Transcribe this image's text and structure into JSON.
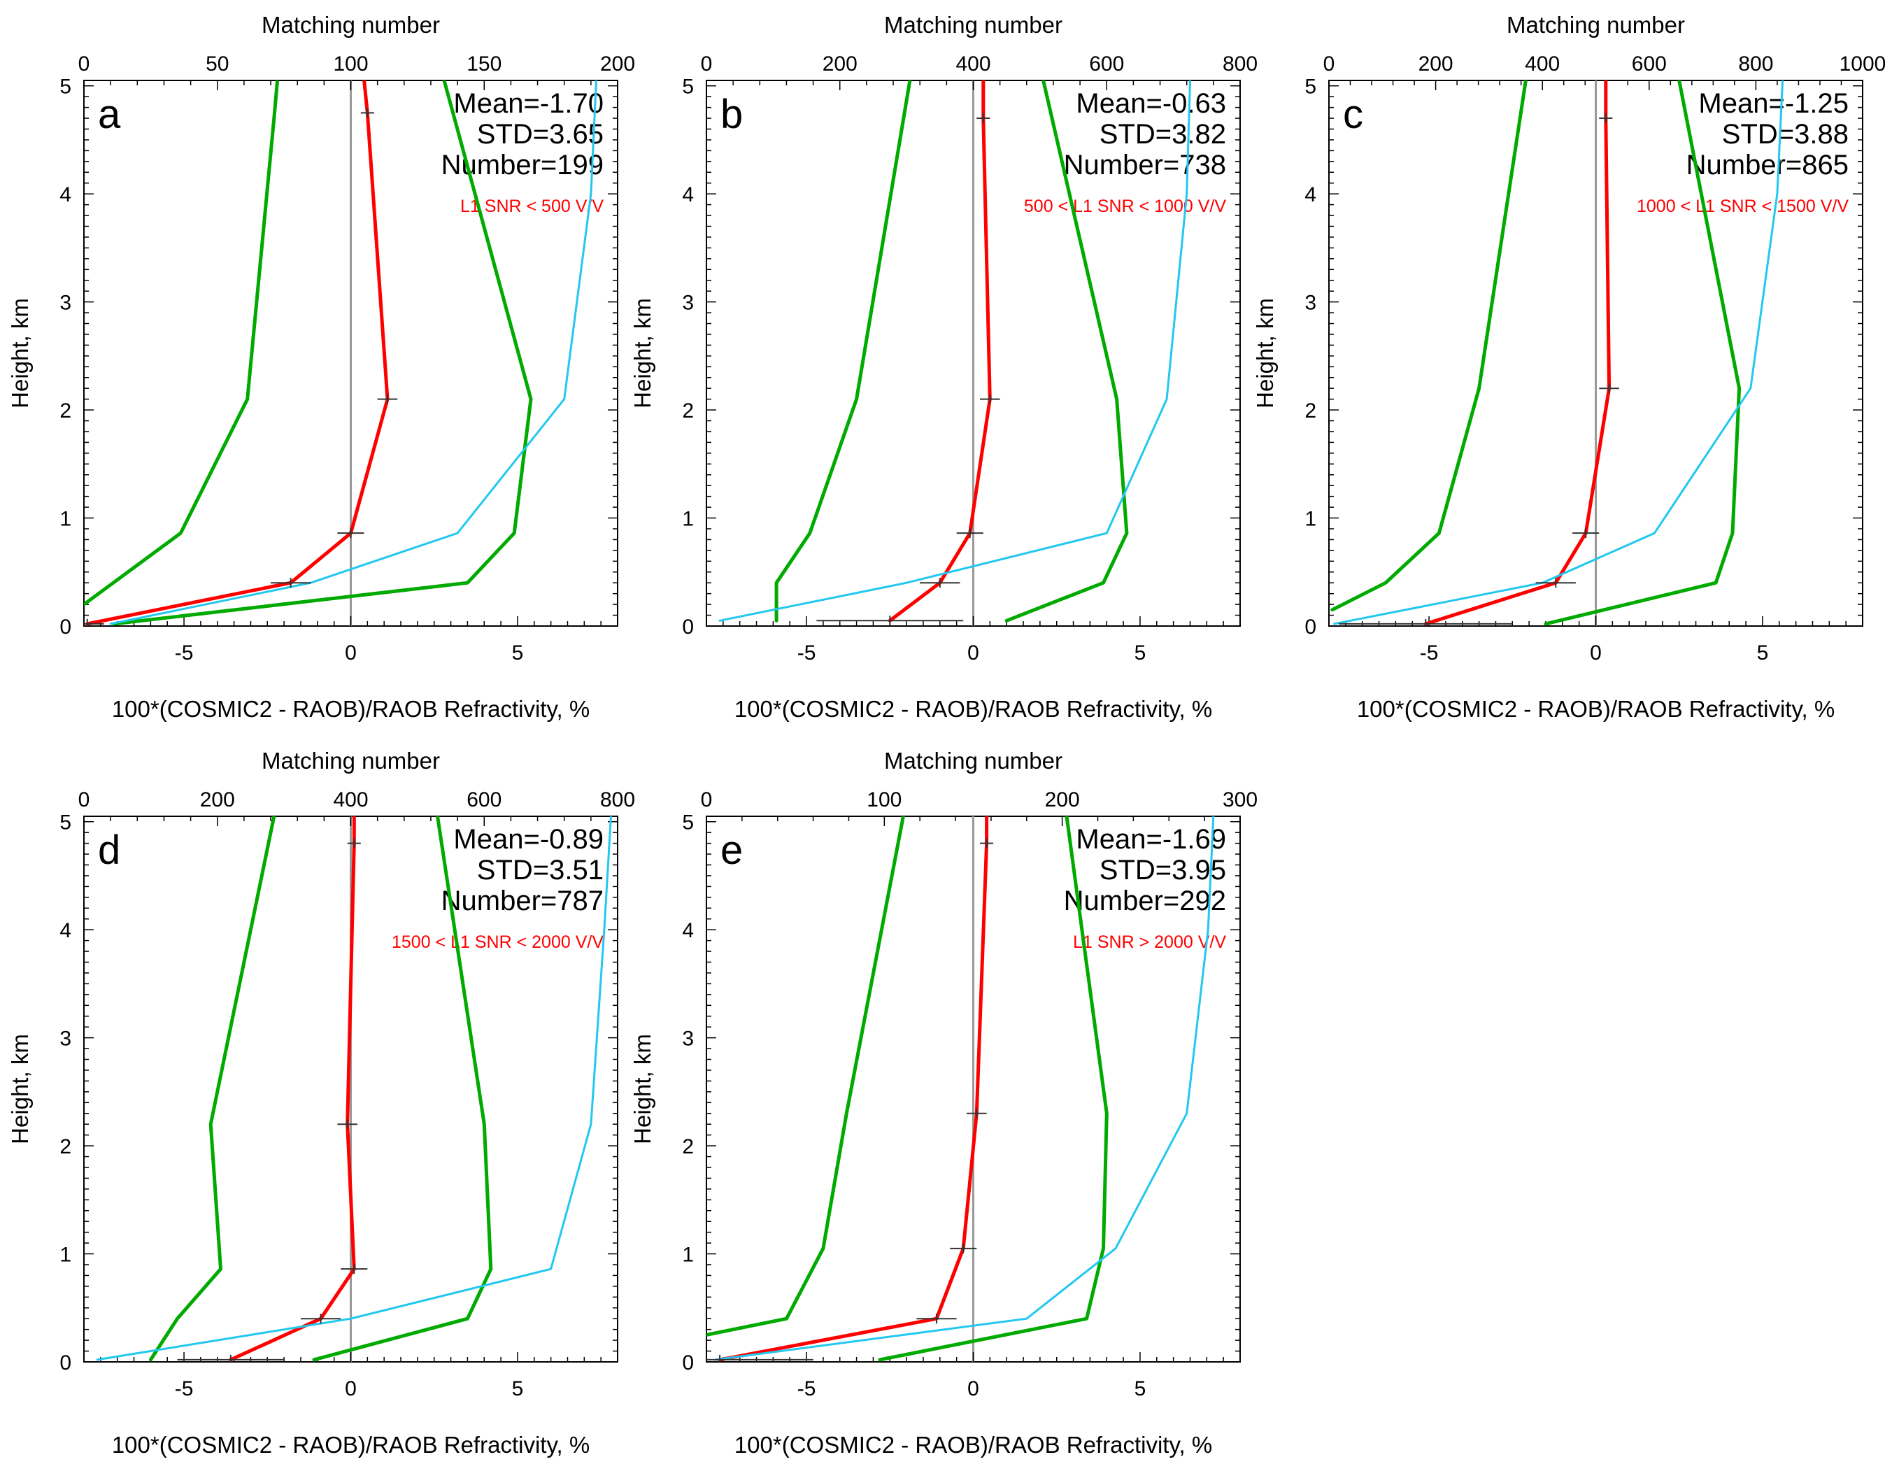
{
  "colors": {
    "bias": "#ff0000",
    "std": "#00aa00",
    "matching": "#22c8f0",
    "zero_line": "#999999",
    "axis": "#000000"
  },
  "chart_data": [
    {
      "type": "line",
      "panel_label": "a",
      "xlabel": "100*(COSMIC2 - RAOB)/RAOB Refractivity, %",
      "ylabel": "Height, km",
      "top_xlabel": "Matching number",
      "xlim": [
        -8,
        8
      ],
      "ylim": [
        0,
        5.05
      ],
      "top_xlim": [
        0,
        200
      ],
      "x_ticks": [
        -5,
        0,
        5
      ],
      "y_ticks": [
        0,
        1,
        2,
        3,
        4,
        5
      ],
      "top_ticks": [
        0,
        50,
        100,
        150,
        200
      ],
      "stats": {
        "mean": "Mean=-1.70",
        "std": "STD=3.65",
        "number": "Number=199"
      },
      "snr_label": "L1 SNR < 500 V/V",
      "series": [
        {
          "role": "bias",
          "points": [
            [
              -7.9,
              0.02
            ],
            [
              -1.8,
              0.4
            ],
            [
              0.0,
              0.86
            ],
            [
              1.1,
              2.1
            ],
            [
              0.5,
              4.75
            ],
            [
              0.4,
              5.05
            ]
          ]
        },
        {
          "role": "std-left",
          "points": [
            [
              -8.0,
              0.2
            ],
            [
              -5.1,
              0.86
            ],
            [
              -3.1,
              2.1
            ],
            [
              -2.3,
              4.7
            ],
            [
              -2.2,
              5.05
            ]
          ]
        },
        {
          "role": "std-right",
          "points": [
            [
              -7.1,
              0.02
            ],
            [
              3.5,
              0.4
            ],
            [
              4.9,
              0.86
            ],
            [
              5.4,
              2.1
            ],
            [
              2.8,
              5.05
            ]
          ]
        },
        {
          "role": "matching",
          "points": [
            [
              10,
              0.02
            ],
            [
              85,
              0.4
            ],
            [
              140,
              0.86
            ],
            [
              180,
              2.1
            ],
            [
              190,
              4.0
            ],
            [
              192,
              5.05
            ]
          ]
        }
      ],
      "error_bars": [
        [
          0.5,
          4.75,
          0.2
        ],
        [
          1.1,
          2.1,
          0.3
        ],
        [
          0.0,
          0.86,
          0.4
        ],
        [
          -1.8,
          0.4,
          0.6
        ],
        [
          -7.9,
          0.02,
          0.5
        ]
      ]
    },
    {
      "type": "line",
      "panel_label": "b",
      "xlabel": "100*(COSMIC2 - RAOB)/RAOB Refractivity, %",
      "ylabel": "Height, km",
      "top_xlabel": "Matching number",
      "xlim": [
        -8,
        8
      ],
      "ylim": [
        0,
        5.05
      ],
      "top_xlim": [
        0,
        800
      ],
      "x_ticks": [
        -5,
        0,
        5
      ],
      "y_ticks": [
        0,
        1,
        2,
        3,
        4,
        5
      ],
      "top_ticks": [
        0,
        200,
        400,
        600,
        800
      ],
      "stats": {
        "mean": "Mean=-0.63",
        "std": "STD=3.82",
        "number": "Number=738"
      },
      "snr_label": "500 < L1 SNR < 1000 V/V",
      "series": [
        {
          "role": "bias",
          "points": [
            [
              -2.5,
              0.05
            ],
            [
              -1.0,
              0.4
            ],
            [
              -0.1,
              0.86
            ],
            [
              0.5,
              2.1
            ],
            [
              0.3,
              4.7
            ],
            [
              0.3,
              5.05
            ]
          ]
        },
        {
          "role": "std-left",
          "points": [
            [
              -5.9,
              0.05
            ],
            [
              -5.9,
              0.4
            ],
            [
              -4.9,
              0.86
            ],
            [
              -3.5,
              2.1
            ],
            [
              -1.9,
              5.05
            ]
          ]
        },
        {
          "role": "std-right",
          "points": [
            [
              1.0,
              0.05
            ],
            [
              3.9,
              0.4
            ],
            [
              4.6,
              0.86
            ],
            [
              4.3,
              2.1
            ],
            [
              2.1,
              5.05
            ]
          ]
        },
        {
          "role": "matching",
          "points": [
            [
              20,
              0.05
            ],
            [
              300,
              0.4
            ],
            [
              600,
              0.86
            ],
            [
              690,
              2.1
            ],
            [
              720,
              4.0
            ],
            [
              725,
              5.05
            ]
          ]
        }
      ],
      "error_bars": [
        [
          0.3,
          4.7,
          0.2
        ],
        [
          0.5,
          2.1,
          0.3
        ],
        [
          -0.1,
          0.86,
          0.4
        ],
        [
          -1.0,
          0.4,
          0.6
        ],
        [
          -2.5,
          0.05,
          2.2
        ]
      ]
    },
    {
      "type": "line",
      "panel_label": "c",
      "xlabel": "100*(COSMIC2 - RAOB)/RAOB Refractivity, %",
      "ylabel": "Height, km",
      "top_xlabel": "Matching number",
      "xlim": [
        -8,
        8
      ],
      "ylim": [
        0,
        5.05
      ],
      "top_xlim": [
        0,
        1000
      ],
      "x_ticks": [
        -5,
        0,
        5
      ],
      "y_ticks": [
        0,
        1,
        2,
        3,
        4,
        5
      ],
      "top_ticks": [
        0,
        200,
        400,
        600,
        800,
        1000
      ],
      "stats": {
        "mean": "Mean=-1.25",
        "std": "STD=3.88",
        "number": "Number=865"
      },
      "snr_label": "1000 < L1 SNR < 1500 V/V",
      "series": [
        {
          "role": "bias",
          "points": [
            [
              -5.1,
              0.02
            ],
            [
              -1.2,
              0.4
            ],
            [
              -0.3,
              0.86
            ],
            [
              0.4,
              2.2
            ],
            [
              0.3,
              4.7
            ],
            [
              0.3,
              5.05
            ]
          ]
        },
        {
          "role": "std-left",
          "points": [
            [
              -7.9,
              0.15
            ],
            [
              -6.3,
              0.4
            ],
            [
              -4.7,
              0.86
            ],
            [
              -3.5,
              2.2
            ],
            [
              -2.1,
              5.05
            ]
          ]
        },
        {
          "role": "std-right",
          "points": [
            [
              -1.5,
              0.02
            ],
            [
              3.6,
              0.4
            ],
            [
              4.1,
              0.86
            ],
            [
              4.3,
              2.2
            ],
            [
              2.5,
              5.05
            ]
          ]
        },
        {
          "role": "matching",
          "points": [
            [
              10,
              0.02
            ],
            [
              400,
              0.4
            ],
            [
              610,
              0.86
            ],
            [
              790,
              2.2
            ],
            [
              840,
              4.0
            ],
            [
              850,
              5.05
            ]
          ]
        }
      ],
      "error_bars": [
        [
          0.3,
          4.7,
          0.2
        ],
        [
          0.4,
          2.2,
          0.3
        ],
        [
          -0.3,
          0.86,
          0.4
        ],
        [
          -1.2,
          0.4,
          0.6
        ],
        [
          -5.1,
          0.02,
          2.6
        ]
      ]
    },
    {
      "type": "line",
      "panel_label": "d",
      "xlabel": "100*(COSMIC2 - RAOB)/RAOB Refractivity, %",
      "ylabel": "Height, km",
      "top_xlabel": "Matching number",
      "xlim": [
        -8,
        8
      ],
      "ylim": [
        0,
        5.05
      ],
      "top_xlim": [
        0,
        800
      ],
      "x_ticks": [
        -5,
        0,
        5
      ],
      "y_ticks": [
        0,
        1,
        2,
        3,
        4,
        5
      ],
      "top_ticks": [
        0,
        200,
        400,
        600,
        800
      ],
      "stats": {
        "mean": "Mean=-0.89",
        "std": "STD=3.51",
        "number": "Number=787"
      },
      "snr_label": "1500 < L1 SNR < 2000 V/V",
      "series": [
        {
          "role": "bias",
          "points": [
            [
              -3.6,
              0.02
            ],
            [
              -0.9,
              0.4
            ],
            [
              0.1,
              0.86
            ],
            [
              -0.1,
              2.2
            ],
            [
              0.1,
              4.8
            ],
            [
              0.1,
              5.05
            ]
          ]
        },
        {
          "role": "std-left",
          "points": [
            [
              -6.0,
              0.02
            ],
            [
              -5.2,
              0.4
            ],
            [
              -3.9,
              0.86
            ],
            [
              -4.2,
              2.2
            ],
            [
              -2.3,
              5.05
            ]
          ]
        },
        {
          "role": "std-right",
          "points": [
            [
              -1.1,
              0.02
            ],
            [
              3.5,
              0.4
            ],
            [
              4.2,
              0.86
            ],
            [
              4.0,
              2.2
            ],
            [
              2.6,
              5.05
            ]
          ]
        },
        {
          "role": "matching",
          "points": [
            [
              20,
              0.02
            ],
            [
              400,
              0.4
            ],
            [
              700,
              0.86
            ],
            [
              760,
              2.2
            ],
            [
              780,
              4.0
            ],
            [
              790,
              5.05
            ]
          ]
        }
      ],
      "error_bars": [
        [
          0.1,
          4.8,
          0.2
        ],
        [
          -0.1,
          2.2,
          0.3
        ],
        [
          0.1,
          0.86,
          0.4
        ],
        [
          -0.9,
          0.4,
          0.6
        ],
        [
          -3.6,
          0.02,
          1.6
        ]
      ]
    },
    {
      "type": "line",
      "panel_label": "e",
      "xlabel": "100*(COSMIC2 - RAOB)/RAOB Refractivity, %",
      "ylabel": "Height, km",
      "top_xlabel": "Matching number",
      "xlim": [
        -8,
        8
      ],
      "ylim": [
        0,
        5.05
      ],
      "top_xlim": [
        0,
        300
      ],
      "x_ticks": [
        -5,
        0,
        5
      ],
      "y_ticks": [
        0,
        1,
        2,
        3,
        4,
        5
      ],
      "top_ticks": [
        0,
        100,
        200,
        300
      ],
      "stats": {
        "mean": "Mean=-1.69",
        "std": "STD=3.95",
        "number": "Number=292"
      },
      "snr_label": "L1 SNR > 2000 V/V",
      "series": [
        {
          "role": "bias",
          "points": [
            [
              -7.6,
              0.02
            ],
            [
              -1.1,
              0.4
            ],
            [
              -0.3,
              1.05
            ],
            [
              0.1,
              2.3
            ],
            [
              0.4,
              4.8
            ],
            [
              0.4,
              5.05
            ]
          ]
        },
        {
          "role": "std-left",
          "points": [
            [
              -8.0,
              0.25
            ],
            [
              -5.6,
              0.4
            ],
            [
              -4.5,
              1.05
            ],
            [
              -3.8,
              2.3
            ],
            [
              -2.1,
              5.05
            ]
          ]
        },
        {
          "role": "std-right",
          "points": [
            [
              -2.8,
              0.02
            ],
            [
              3.4,
              0.4
            ],
            [
              3.9,
              1.05
            ],
            [
              4.0,
              2.3
            ],
            [
              2.8,
              5.05
            ]
          ]
        },
        {
          "role": "matching",
          "points": [
            [
              5,
              0.02
            ],
            [
              180,
              0.4
            ],
            [
              230,
              1.05
            ],
            [
              270,
              2.3
            ],
            [
              282,
              4.0
            ],
            [
              285,
              5.05
            ]
          ]
        }
      ],
      "error_bars": [
        [
          0.4,
          4.8,
          0.2
        ],
        [
          0.1,
          2.3,
          0.3
        ],
        [
          -0.3,
          1.05,
          0.4
        ],
        [
          -1.1,
          0.4,
          0.6
        ],
        [
          -7.6,
          0.02,
          2.8
        ]
      ]
    }
  ]
}
